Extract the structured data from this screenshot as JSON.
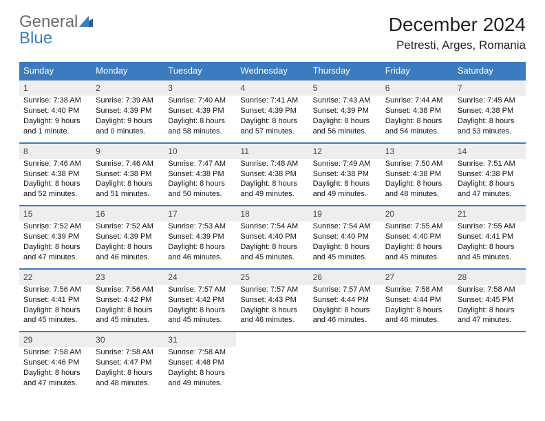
{
  "logo": {
    "text1": "General",
    "text2": "Blue"
  },
  "title": "December 2024",
  "location": "Petresti, Arges, Romania",
  "colors": {
    "header_bg": "#3b7bbf",
    "header_text": "#ffffff",
    "daynum_bg": "#eeeeee",
    "border": "#3b7bbf",
    "logo_gray": "#6b6b6b",
    "logo_blue": "#3b7bbf"
  },
  "weekdays": [
    "Sunday",
    "Monday",
    "Tuesday",
    "Wednesday",
    "Thursday",
    "Friday",
    "Saturday"
  ],
  "weeks": [
    [
      {
        "day": "1",
        "sunrise": "Sunrise: 7:38 AM",
        "sunset": "Sunset: 4:40 PM",
        "daylight": "Daylight: 9 hours and 1 minute."
      },
      {
        "day": "2",
        "sunrise": "Sunrise: 7:39 AM",
        "sunset": "Sunset: 4:39 PM",
        "daylight": "Daylight: 9 hours and 0 minutes."
      },
      {
        "day": "3",
        "sunrise": "Sunrise: 7:40 AM",
        "sunset": "Sunset: 4:39 PM",
        "daylight": "Daylight: 8 hours and 58 minutes."
      },
      {
        "day": "4",
        "sunrise": "Sunrise: 7:41 AM",
        "sunset": "Sunset: 4:39 PM",
        "daylight": "Daylight: 8 hours and 57 minutes."
      },
      {
        "day": "5",
        "sunrise": "Sunrise: 7:43 AM",
        "sunset": "Sunset: 4:39 PM",
        "daylight": "Daylight: 8 hours and 56 minutes."
      },
      {
        "day": "6",
        "sunrise": "Sunrise: 7:44 AM",
        "sunset": "Sunset: 4:38 PM",
        "daylight": "Daylight: 8 hours and 54 minutes."
      },
      {
        "day": "7",
        "sunrise": "Sunrise: 7:45 AM",
        "sunset": "Sunset: 4:38 PM",
        "daylight": "Daylight: 8 hours and 53 minutes."
      }
    ],
    [
      {
        "day": "8",
        "sunrise": "Sunrise: 7:46 AM",
        "sunset": "Sunset: 4:38 PM",
        "daylight": "Daylight: 8 hours and 52 minutes."
      },
      {
        "day": "9",
        "sunrise": "Sunrise: 7:46 AM",
        "sunset": "Sunset: 4:38 PM",
        "daylight": "Daylight: 8 hours and 51 minutes."
      },
      {
        "day": "10",
        "sunrise": "Sunrise: 7:47 AM",
        "sunset": "Sunset: 4:38 PM",
        "daylight": "Daylight: 8 hours and 50 minutes."
      },
      {
        "day": "11",
        "sunrise": "Sunrise: 7:48 AM",
        "sunset": "Sunset: 4:38 PM",
        "daylight": "Daylight: 8 hours and 49 minutes."
      },
      {
        "day": "12",
        "sunrise": "Sunrise: 7:49 AM",
        "sunset": "Sunset: 4:38 PM",
        "daylight": "Daylight: 8 hours and 49 minutes."
      },
      {
        "day": "13",
        "sunrise": "Sunrise: 7:50 AM",
        "sunset": "Sunset: 4:38 PM",
        "daylight": "Daylight: 8 hours and 48 minutes."
      },
      {
        "day": "14",
        "sunrise": "Sunrise: 7:51 AM",
        "sunset": "Sunset: 4:38 PM",
        "daylight": "Daylight: 8 hours and 47 minutes."
      }
    ],
    [
      {
        "day": "15",
        "sunrise": "Sunrise: 7:52 AM",
        "sunset": "Sunset: 4:39 PM",
        "daylight": "Daylight: 8 hours and 47 minutes."
      },
      {
        "day": "16",
        "sunrise": "Sunrise: 7:52 AM",
        "sunset": "Sunset: 4:39 PM",
        "daylight": "Daylight: 8 hours and 46 minutes."
      },
      {
        "day": "17",
        "sunrise": "Sunrise: 7:53 AM",
        "sunset": "Sunset: 4:39 PM",
        "daylight": "Daylight: 8 hours and 46 minutes."
      },
      {
        "day": "18",
        "sunrise": "Sunrise: 7:54 AM",
        "sunset": "Sunset: 4:40 PM",
        "daylight": "Daylight: 8 hours and 45 minutes."
      },
      {
        "day": "19",
        "sunrise": "Sunrise: 7:54 AM",
        "sunset": "Sunset: 4:40 PM",
        "daylight": "Daylight: 8 hours and 45 minutes."
      },
      {
        "day": "20",
        "sunrise": "Sunrise: 7:55 AM",
        "sunset": "Sunset: 4:40 PM",
        "daylight": "Daylight: 8 hours and 45 minutes."
      },
      {
        "day": "21",
        "sunrise": "Sunrise: 7:55 AM",
        "sunset": "Sunset: 4:41 PM",
        "daylight": "Daylight: 8 hours and 45 minutes."
      }
    ],
    [
      {
        "day": "22",
        "sunrise": "Sunrise: 7:56 AM",
        "sunset": "Sunset: 4:41 PM",
        "daylight": "Daylight: 8 hours and 45 minutes."
      },
      {
        "day": "23",
        "sunrise": "Sunrise: 7:56 AM",
        "sunset": "Sunset: 4:42 PM",
        "daylight": "Daylight: 8 hours and 45 minutes."
      },
      {
        "day": "24",
        "sunrise": "Sunrise: 7:57 AM",
        "sunset": "Sunset: 4:42 PM",
        "daylight": "Daylight: 8 hours and 45 minutes."
      },
      {
        "day": "25",
        "sunrise": "Sunrise: 7:57 AM",
        "sunset": "Sunset: 4:43 PM",
        "daylight": "Daylight: 8 hours and 46 minutes."
      },
      {
        "day": "26",
        "sunrise": "Sunrise: 7:57 AM",
        "sunset": "Sunset: 4:44 PM",
        "daylight": "Daylight: 8 hours and 46 minutes."
      },
      {
        "day": "27",
        "sunrise": "Sunrise: 7:58 AM",
        "sunset": "Sunset: 4:44 PM",
        "daylight": "Daylight: 8 hours and 46 minutes."
      },
      {
        "day": "28",
        "sunrise": "Sunrise: 7:58 AM",
        "sunset": "Sunset: 4:45 PM",
        "daylight": "Daylight: 8 hours and 47 minutes."
      }
    ],
    [
      {
        "day": "29",
        "sunrise": "Sunrise: 7:58 AM",
        "sunset": "Sunset: 4:46 PM",
        "daylight": "Daylight: 8 hours and 47 minutes."
      },
      {
        "day": "30",
        "sunrise": "Sunrise: 7:58 AM",
        "sunset": "Sunset: 4:47 PM",
        "daylight": "Daylight: 8 hours and 48 minutes."
      },
      {
        "day": "31",
        "sunrise": "Sunrise: 7:58 AM",
        "sunset": "Sunset: 4:48 PM",
        "daylight": "Daylight: 8 hours and 49 minutes."
      },
      null,
      null,
      null,
      null
    ]
  ]
}
